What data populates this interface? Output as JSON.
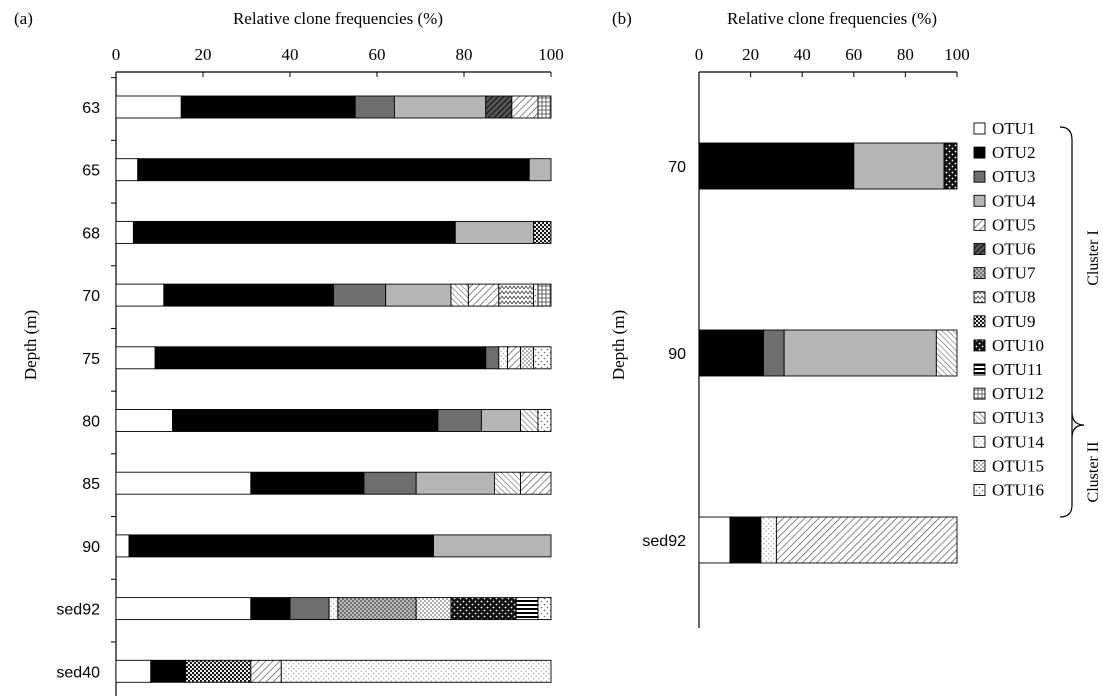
{
  "figure": {
    "panel_a_label": "(a)",
    "panel_b_label": "(b)",
    "cluster_labels": [
      "Cluster I",
      "Cluster II"
    ],
    "legend": [
      {
        "name": "OTU1",
        "fill": "solid",
        "color": "#ffffff"
      },
      {
        "name": "OTU2",
        "fill": "solid",
        "color": "#000000"
      },
      {
        "name": "OTU3",
        "fill": "solid",
        "color": "#6e6e6e"
      },
      {
        "name": "OTU4",
        "fill": "solid",
        "color": "#b5b5b5"
      },
      {
        "name": "OTU5",
        "fill": "hatch-diag",
        "color": "#555555"
      },
      {
        "name": "OTU6",
        "fill": "hatch-dark-diag",
        "color": "#222222"
      },
      {
        "name": "OTU7",
        "fill": "dots-grey",
        "color": "#777777"
      },
      {
        "name": "OTU8",
        "fill": "hatch-zigzag",
        "color": "#555555"
      },
      {
        "name": "OTU9",
        "fill": "dots-dense",
        "color": "#111111"
      },
      {
        "name": "OTU10",
        "fill": "checker",
        "color": "#111111"
      },
      {
        "name": "OTU11",
        "fill": "hstripes",
        "color": "#000000"
      },
      {
        "name": "OTU12",
        "fill": "grid",
        "color": "#444444"
      },
      {
        "name": "OTU13",
        "fill": "hatch-diag-b",
        "color": "#666666"
      },
      {
        "name": "OTU14",
        "fill": "dots-light",
        "color": "#888888"
      },
      {
        "name": "OTU15",
        "fill": "dots-medium",
        "color": "#666666"
      },
      {
        "name": "OTU16",
        "fill": "dots-sparse",
        "color": "#666666"
      }
    ]
  },
  "chart_data": [
    {
      "type": "bar",
      "orientation": "horizontal",
      "stacked": true,
      "panel": "(a)",
      "title": "Relative clone frequencies (%)",
      "xlabel": "Relative clone frequencies (%)",
      "ylabel": "Depth (m)",
      "xlim": [
        0,
        100
      ],
      "xticks": [
        "0",
        "20",
        "40",
        "60",
        "80",
        "100"
      ],
      "categories": [
        "63",
        "65",
        "68",
        "70",
        "75",
        "80",
        "85",
        "90",
        "sed92",
        "sed40"
      ],
      "segments": [
        [
          [
            "OTU1",
            15
          ],
          [
            "OTU2",
            40
          ],
          [
            "OTU3",
            9
          ],
          [
            "OTU4",
            21
          ],
          [
            "OTU6",
            6
          ],
          [
            "OTU5",
            6
          ],
          [
            "OTU12",
            3
          ]
        ],
        [
          [
            "OTU1",
            5
          ],
          [
            "OTU2",
            90
          ],
          [
            "OTU4",
            5
          ]
        ],
        [
          [
            "OTU1",
            4
          ],
          [
            "OTU2",
            74
          ],
          [
            "OTU4",
            18
          ],
          [
            "OTU9",
            4
          ]
        ],
        [
          [
            "OTU1",
            11
          ],
          [
            "OTU2",
            39
          ],
          [
            "OTU3",
            12
          ],
          [
            "OTU4",
            15
          ],
          [
            "OTU13",
            4
          ],
          [
            "OTU5",
            7
          ],
          [
            "OTU8",
            8
          ],
          [
            "OTU16",
            1
          ],
          [
            "OTU12",
            3
          ]
        ],
        [
          [
            "OTU1",
            9
          ],
          [
            "OTU2",
            76
          ],
          [
            "OTU3",
            3
          ],
          [
            "OTU14",
            2
          ],
          [
            "OTU5",
            3
          ],
          [
            "OTU15",
            3
          ],
          [
            "OTU16",
            4
          ]
        ],
        [
          [
            "OTU1",
            13
          ],
          [
            "OTU2",
            61
          ],
          [
            "OTU3",
            10
          ],
          [
            "OTU4",
            9
          ],
          [
            "OTU13",
            4
          ],
          [
            "OTU16",
            3
          ]
        ],
        [
          [
            "OTU1",
            31
          ],
          [
            "OTU2",
            26
          ],
          [
            "OTU3",
            12
          ],
          [
            "OTU4",
            18
          ],
          [
            "OTU13",
            6
          ],
          [
            "OTU5",
            7
          ]
        ],
        [
          [
            "OTU1",
            3
          ],
          [
            "OTU2",
            70
          ],
          [
            "OTU4",
            27
          ]
        ],
        [
          [
            "OTU1",
            31
          ],
          [
            "OTU2",
            9
          ],
          [
            "OTU3",
            9
          ],
          [
            "OTU14",
            2
          ],
          [
            "OTU7",
            18
          ],
          [
            "OTU15",
            8
          ],
          [
            "OTU10",
            15
          ],
          [
            "OTU11",
            5
          ],
          [
            "OTU16",
            3
          ]
        ],
        [
          [
            "OTU1",
            8
          ],
          [
            "OTU2",
            8
          ],
          [
            "OTU9",
            15
          ],
          [
            "OTU5",
            7
          ],
          [
            "OTU14",
            62
          ]
        ]
      ]
    },
    {
      "type": "bar",
      "orientation": "horizontal",
      "stacked": true,
      "panel": "(b)",
      "title": "Relative clone frequencies (%)",
      "xlabel": "Relative clone frequencies (%)",
      "ylabel": "Depth (m)",
      "xlim": [
        0,
        100
      ],
      "xticks": [
        "0",
        "20",
        "40",
        "60",
        "80",
        "100"
      ],
      "categories": [
        "70",
        "90",
        "sed92"
      ],
      "segments": [
        [
          [
            "OTU2",
            60
          ],
          [
            "OTU4",
            35
          ],
          [
            "OTU10",
            5
          ]
        ],
        [
          [
            "OTU2",
            25
          ],
          [
            "OTU3",
            8
          ],
          [
            "OTU4",
            59
          ],
          [
            "OTU13",
            8
          ]
        ],
        [
          [
            "OTU1",
            12
          ],
          [
            "OTU2",
            12
          ],
          [
            "OTU14",
            6
          ],
          [
            "OTU5",
            70
          ]
        ]
      ]
    }
  ]
}
